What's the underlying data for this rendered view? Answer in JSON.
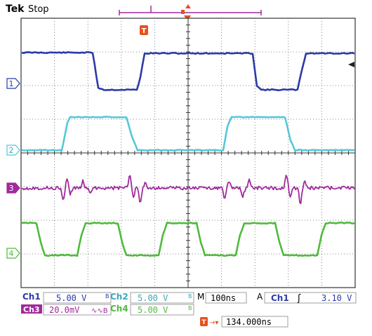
{
  "header": {
    "brand": "Tek",
    "run_state": "Stop"
  },
  "colors": {
    "ch1": "#2b3aa8",
    "ch2": "#55c8d8",
    "ch3": "#a02a9c",
    "ch4": "#4fba3c",
    "trigger": "#e8501e",
    "grid": "#555555"
  },
  "channels": [
    {
      "id": "1",
      "marker_label": "1"
    },
    {
      "id": "2",
      "marker_label": "2"
    },
    {
      "id": "3",
      "marker_label": "3"
    },
    {
      "id": "4",
      "marker_label": "4"
    }
  ],
  "trigger_marker_label": "T",
  "readout": {
    "ch1_label": "Ch1",
    "ch1_value": "5.00 V",
    "ch2_label": "Ch2",
    "ch2_value": "5.00 V",
    "ch3_label": "Ch3",
    "ch3_value": "20.0mV",
    "ch4_label": "Ch4",
    "ch4_value": "5.00 V",
    "timebase_label": "M",
    "timebase_value": "100ns",
    "trigger_mode": "A",
    "trigger_source": "Ch1",
    "trigger_slope_symbol": "ʃ",
    "trigger_level": "3.10 V",
    "trigger_position_label": "T",
    "trigger_position_value": "134.000ns"
  },
  "icons": {
    "trigger_marker": "trigger-t-icon",
    "trigger_level_arrow": "trigger-level-arrow-icon",
    "record_bar": "record-position-bar-icon"
  }
}
